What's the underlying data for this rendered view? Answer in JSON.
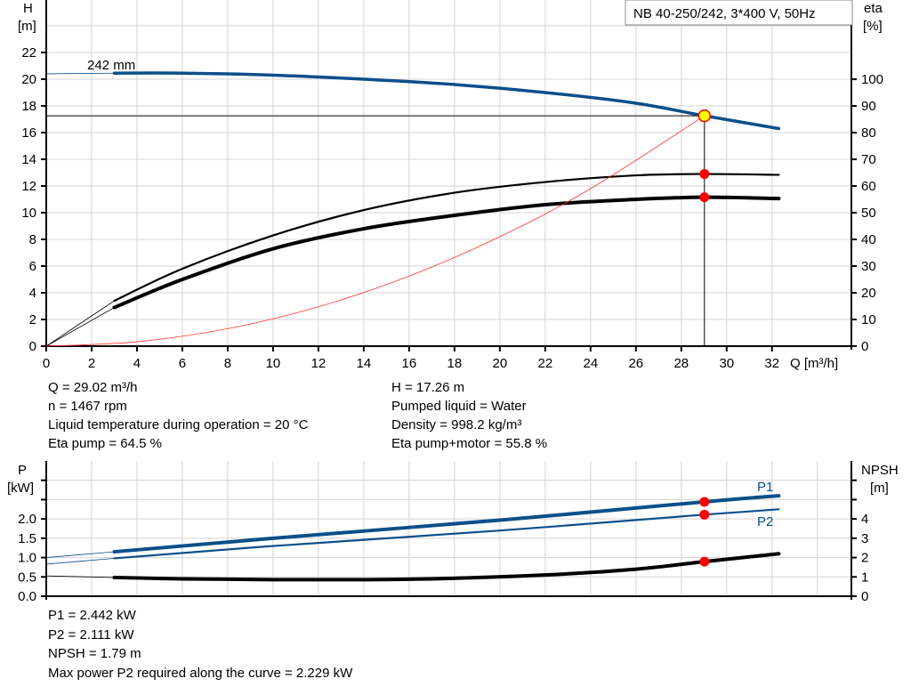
{
  "colors": {
    "pump_curve": "#0b4f8a",
    "efficiency": "#000000",
    "system_curve": "#ff3333",
    "marker": "#ff0000",
    "op_point": "#ffff00",
    "grid": "#d4d4d4"
  },
  "chart_data": [
    {
      "type": "line",
      "title": "NB 40-250/242, 3*400 V, 50Hz",
      "xlabel": "Q [m³/h]",
      "xlim": [
        0,
        35.5
      ],
      "xticks": [
        0,
        2,
        4,
        6,
        8,
        10,
        12,
        14,
        16,
        18,
        20,
        22,
        24,
        26,
        28,
        30,
        32
      ],
      "y_left": {
        "label": "H",
        "unit": "[m]",
        "lim": [
          0,
          25.93
        ],
        "ticks": [
          0,
          2,
          4,
          6,
          8,
          10,
          12,
          14,
          16,
          18,
          20,
          22
        ],
        "grid": [
          0,
          2,
          4,
          6,
          8,
          10,
          12,
          14,
          16,
          18,
          20,
          22,
          24
        ]
      },
      "y_right": {
        "label": "eta",
        "unit": "[%]",
        "lim": [
          0,
          129.7
        ],
        "ticks": [
          0,
          10,
          20,
          30,
          40,
          50,
          60,
          70,
          80,
          90,
          100
        ]
      },
      "grid": true,
      "curve_label": "242 mm",
      "series": [
        {
          "id": "head",
          "axis": "left",
          "color": "#0b4f8a",
          "start": 3,
          "x": [
            0,
            3,
            6,
            10,
            14,
            18,
            22,
            26,
            29.02,
            32.3
          ],
          "y": [
            20.4,
            20.45,
            20.45,
            20.3,
            20.0,
            19.6,
            19.0,
            18.2,
            17.26,
            16.3
          ]
        },
        {
          "id": "eta-pump",
          "axis": "right",
          "color": "#000000",
          "start": 3,
          "x": [
            0,
            3,
            6,
            10,
            14,
            18,
            22,
            26,
            29.02,
            32.3
          ],
          "y": [
            0,
            17,
            29,
            41.5,
            51,
            57.5,
            61.5,
            64,
            64.5,
            64.2
          ]
        },
        {
          "id": "eta-pump-motor",
          "axis": "right",
          "color": "#000000",
          "start": 3,
          "x": [
            0,
            3,
            6,
            10,
            14,
            18,
            22,
            26,
            29.02,
            32.3
          ],
          "y": [
            0,
            14.5,
            25,
            36.5,
            44,
            49,
            53,
            55,
            55.8,
            55.3
          ]
        },
        {
          "id": "system-curve",
          "axis": "left",
          "color": "#ff3333",
          "x": [
            0,
            4,
            8,
            12,
            16,
            20,
            24,
            29.02
          ],
          "y": [
            0,
            0.33,
            1.31,
            2.95,
            5.25,
            8.2,
            11.8,
            17.26
          ]
        }
      ],
      "operating_point": {
        "Q": 29.02,
        "H": 17.26,
        "eta_pump": 64.5,
        "eta_pump_motor": 55.8
      }
    },
    {
      "type": "line",
      "xlim": [
        0,
        35.5
      ],
      "xgrid": [
        0,
        2,
        4,
        6,
        8,
        10,
        12,
        14,
        16,
        18,
        20,
        22,
        24,
        26,
        28,
        30,
        32,
        34
      ],
      "y_left": {
        "label": "P",
        "unit": "[kW]",
        "lim": [
          0,
          3.5
        ],
        "ticks": [
          0,
          0.5,
          1,
          1.5,
          2,
          2.5,
          3
        ],
        "tick_labels": [
          "0.0",
          "0.5",
          "1.0",
          "1.5",
          "2.0",
          "",
          ""
        ]
      },
      "y_right": {
        "label": "NPSH",
        "unit": "[m]",
        "lim": [
          0,
          7
        ],
        "ticks": [
          0,
          1,
          2,
          3,
          4,
          5,
          6
        ],
        "tick_labels": [
          "0",
          "1",
          "2",
          "3",
          "4",
          "",
          ""
        ]
      },
      "grid": true,
      "series": [
        {
          "id": "p1",
          "name": "P1",
          "axis": "left",
          "color": "#0b4f8a",
          "thick": true,
          "start": 3,
          "x": [
            0,
            3,
            10,
            20,
            29.02,
            32.3
          ],
          "y": [
            1.0,
            1.15,
            1.5,
            1.97,
            2.442,
            2.6
          ]
        },
        {
          "id": "p2",
          "name": "P2",
          "axis": "left",
          "color": "#0b4f8a",
          "start": 3,
          "x": [
            0,
            3,
            10,
            20,
            29.02,
            32.3
          ],
          "y": [
            0.83,
            0.98,
            1.3,
            1.7,
            2.111,
            2.25
          ]
        },
        {
          "id": "npsh",
          "axis": "right",
          "color": "#000000",
          "thick": true,
          "start": 3,
          "x": [
            0,
            3,
            6,
            10,
            16,
            22,
            26,
            29.02,
            32.3
          ],
          "y": [
            1.05,
            0.97,
            0.9,
            0.86,
            0.88,
            1.1,
            1.4,
            1.79,
            2.2
          ]
        }
      ],
      "operating_point": {
        "Q": 29.02,
        "P1": 2.442,
        "P2": 2.111,
        "NPSH": 1.79
      }
    }
  ],
  "info_top": {
    "left": [
      "Q = 29.02 m³/h",
      "n = 1467 rpm",
      "Liquid temperature during operation = 20 °C",
      "Eta pump = 64.5 %"
    ],
    "right": [
      "H = 17.26 m",
      "Pumped liquid = Water",
      "Density = 998.2 kg/m³",
      "Eta pump+motor = 55.8 %"
    ]
  },
  "info_bottom": [
    "P1 = 2.442 kW",
    "P2 = 2.111 kW",
    "NPSH = 1.79 m",
    "Max power P2 required along the curve = 2.229 kW"
  ]
}
